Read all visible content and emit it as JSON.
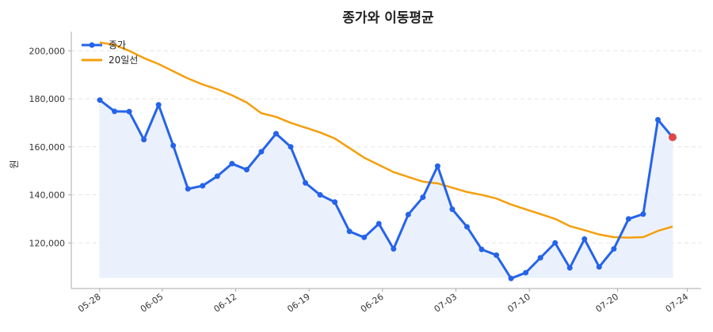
{
  "chart_data": {
    "type": "line",
    "title": "종가와 이동평균",
    "xlabel": "",
    "ylabel": "원",
    "ylim": [
      101000,
      208000
    ],
    "yticks": [
      120000,
      140000,
      160000,
      180000,
      200000
    ],
    "ytick_labels": [
      "120,000",
      "140,000",
      "160,000",
      "180,000",
      "200,000"
    ],
    "x_tick_labels": [
      "05-28",
      "06-05",
      "06-12",
      "06-19",
      "06-26",
      "07-03",
      "07-10",
      "07-20",
      "07-24"
    ],
    "x_tick_index": [
      0,
      4.25,
      9.25,
      14.25,
      19.25,
      24.25,
      29.25,
      35.25,
      40
    ],
    "grid": true,
    "legend_position": "top-left",
    "colors": {
      "close": "#2563eb",
      "ma20": "#f59e0b",
      "fill": "#e8eefb",
      "last_point": "#e04848",
      "grid": "#e5e5e5",
      "axis": "#aaaaaa"
    },
    "series": [
      {
        "name": "종가",
        "values": [
          179500,
          174800,
          174700,
          163000,
          177500,
          160500,
          142500,
          143800,
          147800,
          153000,
          150500,
          158000,
          165500,
          160000,
          145000,
          140000,
          137000,
          124800,
          122300,
          128000,
          117500,
          131800,
          139000,
          152000,
          134000,
          126700,
          117300,
          114900,
          105200,
          107600,
          113800,
          120000,
          109600,
          121600,
          110000,
          117500,
          130000,
          132000,
          171300,
          164000
        ]
      },
      {
        "name": "20일선",
        "values": [
          203500,
          202500,
          200000,
          197000,
          194500,
          191500,
          188500,
          186000,
          184000,
          181500,
          178500,
          174000,
          172500,
          170000,
          168000,
          166000,
          163500,
          159500,
          155500,
          152500,
          149500,
          147500,
          145500,
          144800,
          143000,
          141200,
          140000,
          138500,
          136000,
          134000,
          132000,
          130000,
          127000,
          125300,
          123500,
          122400,
          122200,
          122400,
          125000,
          126800
        ]
      }
    ]
  }
}
